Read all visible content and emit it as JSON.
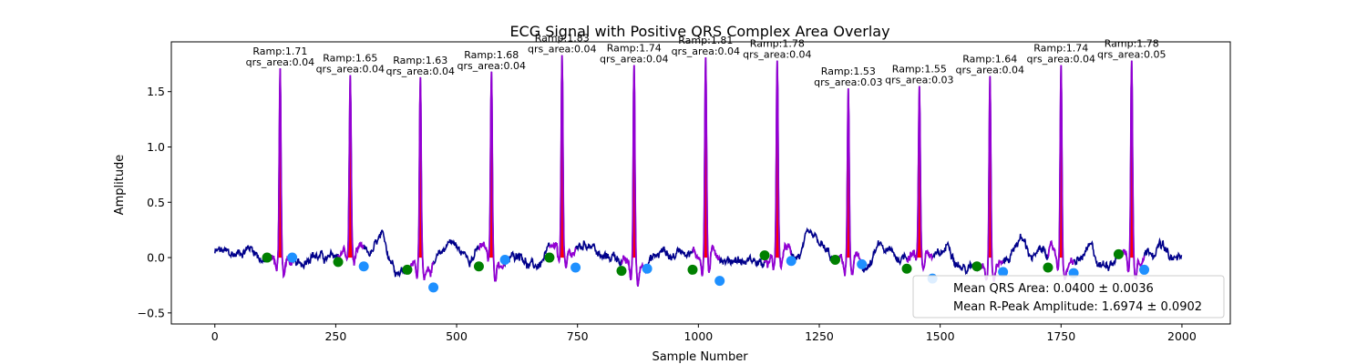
{
  "chart_data": {
    "type": "line",
    "title": "ECG Signal with Positive QRS Complex Area Overlay",
    "xlabel": "Sample Number",
    "ylabel": "Amplitude",
    "xlim": [
      -90,
      2100
    ],
    "ylim": [
      -0.6,
      1.95
    ],
    "x_ticks": [
      0,
      250,
      500,
      750,
      1000,
      1250,
      1500,
      1750,
      2000
    ],
    "y_ticks": [
      -0.5,
      0.0,
      0.5,
      1.0,
      1.5
    ],
    "y_tick_labels": [
      "−0.5",
      "0.0",
      "0.5",
      "1.0",
      "1.5"
    ],
    "grid": false,
    "n_samples": 2000,
    "colors": {
      "signal": "#00008b",
      "qrs_segment": "#9400d3",
      "qrs_area": "#ff0000",
      "onset": "#008000",
      "offset": "#1e90ff"
    },
    "beats": [
      {
        "r_peak": 135,
        "ramp": 1.71,
        "qrs_area": 0.04,
        "ramp_label": "Ramp:1.71",
        "area_label": "qrs_area:0.04",
        "onset": 108,
        "onset_amp": 0.0,
        "offset": 160,
        "offset_amp": 0.0
      },
      {
        "r_peak": 280,
        "ramp": 1.65,
        "ramp_label": "Ramp:1.65",
        "area_label": "qrs_area:0.04",
        "qrs_area": 0.04,
        "onset": 255,
        "onset_amp": -0.04,
        "offset": 308,
        "offset_amp": -0.08
      },
      {
        "r_peak": 425,
        "ramp": 1.63,
        "ramp_label": "Ramp:1.63",
        "area_label": "qrs_area:0.04",
        "qrs_area": 0.04,
        "onset": 398,
        "onset_amp": -0.11,
        "offset": 452,
        "offset_amp": -0.27
      },
      {
        "r_peak": 572,
        "ramp": 1.68,
        "ramp_label": "Ramp:1.68",
        "area_label": "qrs_area:0.04",
        "qrs_area": 0.04,
        "onset": 546,
        "onset_amp": -0.08,
        "offset": 600,
        "offset_amp": -0.02
      },
      {
        "r_peak": 718,
        "ramp": 1.83,
        "ramp_label": "Ramp:1.83",
        "area_label": "qrs_area:0.04",
        "qrs_area": 0.04,
        "onset": 692,
        "onset_amp": 0.0,
        "offset": 746,
        "offset_amp": -0.09
      },
      {
        "r_peak": 867,
        "ramp": 1.74,
        "ramp_label": "Ramp:1.74",
        "area_label": "qrs_area:0.04",
        "qrs_area": 0.04,
        "onset": 841,
        "onset_amp": -0.12,
        "offset": 894,
        "offset_amp": -0.1
      },
      {
        "r_peak": 1015,
        "ramp": 1.81,
        "ramp_label": "Ramp:1.81",
        "area_label": "qrs_area:0.04",
        "qrs_area": 0.04,
        "onset": 988,
        "onset_amp": -0.11,
        "offset": 1044,
        "offset_amp": -0.21
      },
      {
        "r_peak": 1163,
        "ramp": 1.78,
        "ramp_label": "Ramp:1.78",
        "area_label": "qrs_area:0.04",
        "qrs_area": 0.04,
        "onset": 1137,
        "onset_amp": 0.02,
        "offset": 1192,
        "offset_amp": -0.03
      },
      {
        "r_peak": 1310,
        "ramp": 1.53,
        "ramp_label": "Ramp:1.53",
        "area_label": "qrs_area:0.03",
        "qrs_area": 0.03,
        "onset": 1283,
        "onset_amp": -0.02,
        "offset": 1338,
        "offset_amp": -0.06
      },
      {
        "r_peak": 1457,
        "ramp": 1.55,
        "ramp_label": "Ramp:1.55",
        "area_label": "qrs_area:0.03",
        "qrs_area": 0.03,
        "onset": 1431,
        "onset_amp": -0.1,
        "offset": 1484,
        "offset_amp": -0.19
      },
      {
        "r_peak": 1603,
        "ramp": 1.64,
        "ramp_label": "Ramp:1.64",
        "area_label": "qrs_area:0.04",
        "qrs_area": 0.04,
        "onset": 1576,
        "onset_amp": -0.08,
        "offset": 1630,
        "offset_amp": -0.13
      },
      {
        "r_peak": 1750,
        "ramp": 1.74,
        "ramp_label": "Ramp:1.74",
        "area_label": "qrs_area:0.04",
        "qrs_area": 0.04,
        "onset": 1723,
        "onset_amp": -0.09,
        "offset": 1776,
        "offset_amp": -0.14
      },
      {
        "r_peak": 1896,
        "ramp": 1.78,
        "ramp_label": "Ramp:1.78",
        "area_label": "qrs_area:0.05",
        "qrs_area": 0.05,
        "onset": 1869,
        "onset_amp": 0.03,
        "offset": 1922,
        "offset_amp": -0.11
      }
    ],
    "legend": {
      "placement": "lower right",
      "entries": [
        "Mean QRS Area: 0.0400 ± 0.0036",
        "Mean R-Peak Amplitude: 1.6974 ± 0.0902"
      ]
    }
  }
}
